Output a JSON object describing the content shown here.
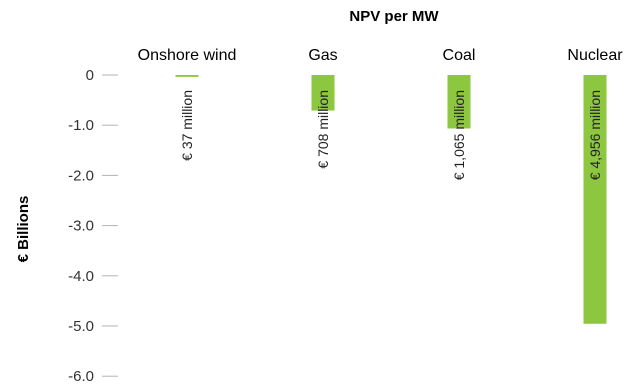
{
  "chart_data": {
    "type": "bar",
    "title": "NPV per MW",
    "xlabel": "",
    "ylabel": "€ Billions",
    "categories": [
      "Onshore wind",
      "Gas",
      "Coal",
      "Nuclear"
    ],
    "values": [
      -0.037,
      -0.708,
      -1.065,
      -4.956
    ],
    "data_labels": [
      "€ 37 million",
      "€ 708 million",
      "€ 1,065 million",
      "€ 4,956 million"
    ],
    "yticks": [
      0,
      -1.0,
      -2.0,
      -3.0,
      -4.0,
      -5.0,
      -6.0
    ],
    "ytick_labels": [
      "0",
      "-1.0",
      "-2.0",
      "-3.0",
      "-4.0",
      "-5.0",
      "-6.0"
    ],
    "ylim": [
      -6,
      0
    ],
    "grid": false,
    "legend": "none",
    "bar_color": "#8dc63f",
    "tick_color": "#b3b3b3"
  }
}
